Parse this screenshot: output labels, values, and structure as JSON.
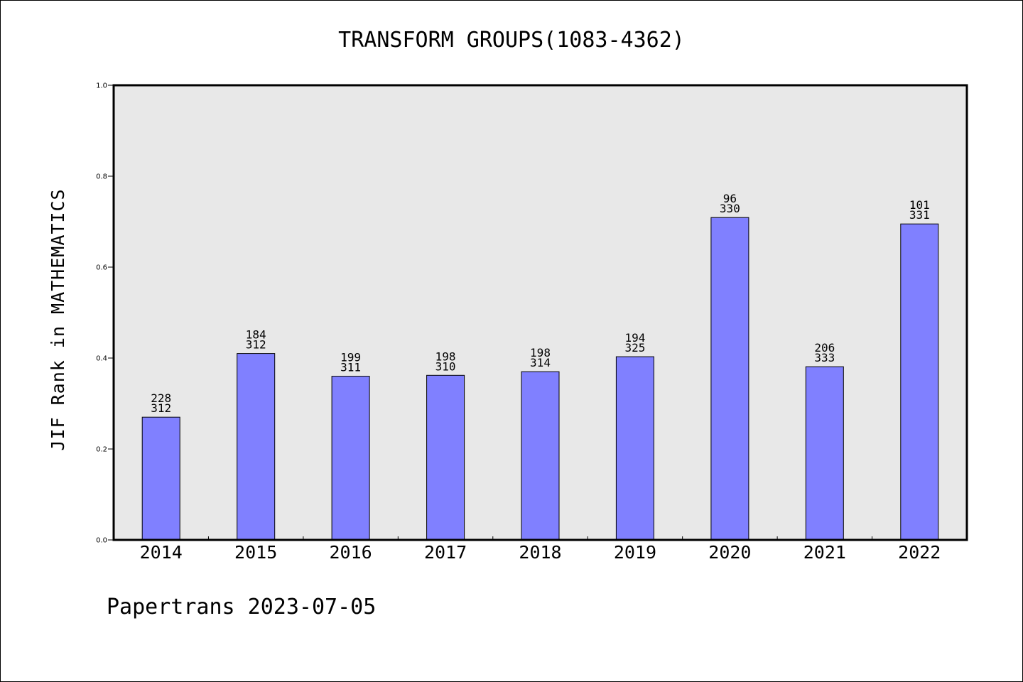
{
  "colors": {
    "plot_background": "#e8e8e8",
    "bar_fill": "#8080ff",
    "bar_stroke": "#000000",
    "axis": "#000000"
  },
  "chart_data": {
    "type": "bar",
    "title": "TRANSFORM GROUPS(1083-4362)",
    "xlabel": "",
    "ylabel": "JIF Rank in MATHEMATICS",
    "ylim": [
      0,
      1.0
    ],
    "yticks": [
      "0.0",
      "0.2",
      "0.4",
      "0.6",
      "0.8",
      "1.0"
    ],
    "categories": [
      "2014",
      "2015",
      "2016",
      "2017",
      "2018",
      "2019",
      "2020",
      "2021",
      "2022"
    ],
    "values": [
      0.27,
      0.41,
      0.36,
      0.362,
      0.37,
      0.403,
      0.709,
      0.381,
      0.695
    ],
    "labels": [
      [
        "228",
        "312"
      ],
      [
        "184",
        "312"
      ],
      [
        "199",
        "311"
      ],
      [
        "198",
        "310"
      ],
      [
        "198",
        "314"
      ],
      [
        "194",
        "325"
      ],
      [
        "96",
        "330"
      ],
      [
        "206",
        "333"
      ],
      [
        "101",
        "331"
      ]
    ],
    "grid": false,
    "legend": "none"
  },
  "footer": "Papertrans 2023-07-05"
}
